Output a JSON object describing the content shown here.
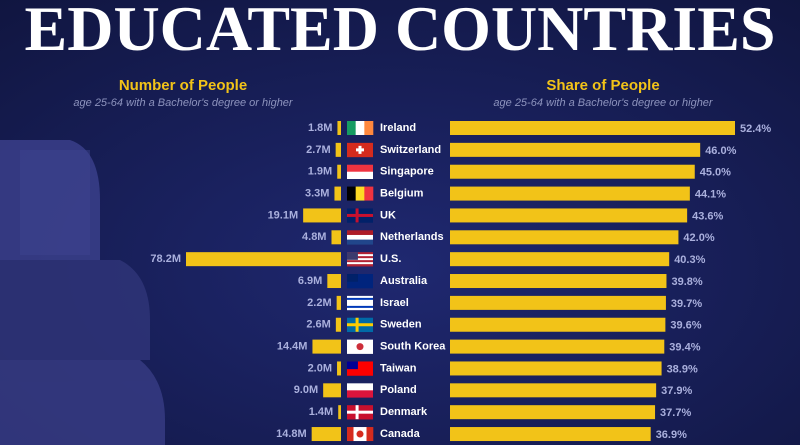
{
  "chart_data": {
    "type": "bar",
    "orientation": "horizontal",
    "title": "EDUCATED COUNTRIES",
    "categories": [
      "Ireland",
      "Switzerland",
      "Singapore",
      "Belgium",
      "UK",
      "Netherlands",
      "U.S.",
      "Australia",
      "Israel",
      "Sweden",
      "South Korea",
      "Taiwan",
      "Poland",
      "Denmark",
      "Canada"
    ],
    "series": [
      {
        "name": "Number of People",
        "subtitle": "age 25-64 with a Bachelor's degree or higher",
        "color": "#f2c318",
        "values": [
          1.8,
          2.7,
          1.9,
          3.3,
          19.1,
          4.8,
          78.2,
          6.9,
          2.2,
          2.6,
          14.4,
          2.0,
          9.0,
          1.4,
          14.8
        ],
        "value_labels": [
          "1.8M",
          "2.7M",
          "1.9M",
          "3.3M",
          "19.1M",
          "4.8M",
          "78.2M",
          "6.9M",
          "2.2M",
          "2.6M",
          "14.4M",
          "2.0M",
          "9.0M",
          "1.4M",
          "14.8M"
        ]
      },
      {
        "name": "Share of People",
        "subtitle": "age 25-64 with a Bachelor's degree or higher",
        "color": "#f2c318",
        "values": [
          52.4,
          46.0,
          45.0,
          44.1,
          43.6,
          42.0,
          40.3,
          39.8,
          39.7,
          39.6,
          39.4,
          38.9,
          37.9,
          37.7,
          36.9
        ],
        "value_labels": [
          "52.4%",
          "46.0%",
          "45.0%",
          "44.1%",
          "43.6%",
          "42.0%",
          "40.3%",
          "39.8%",
          "39.7%",
          "39.6%",
          "39.4%",
          "38.9%",
          "37.9%",
          "37.7%",
          "36.9%"
        ]
      }
    ]
  }
}
